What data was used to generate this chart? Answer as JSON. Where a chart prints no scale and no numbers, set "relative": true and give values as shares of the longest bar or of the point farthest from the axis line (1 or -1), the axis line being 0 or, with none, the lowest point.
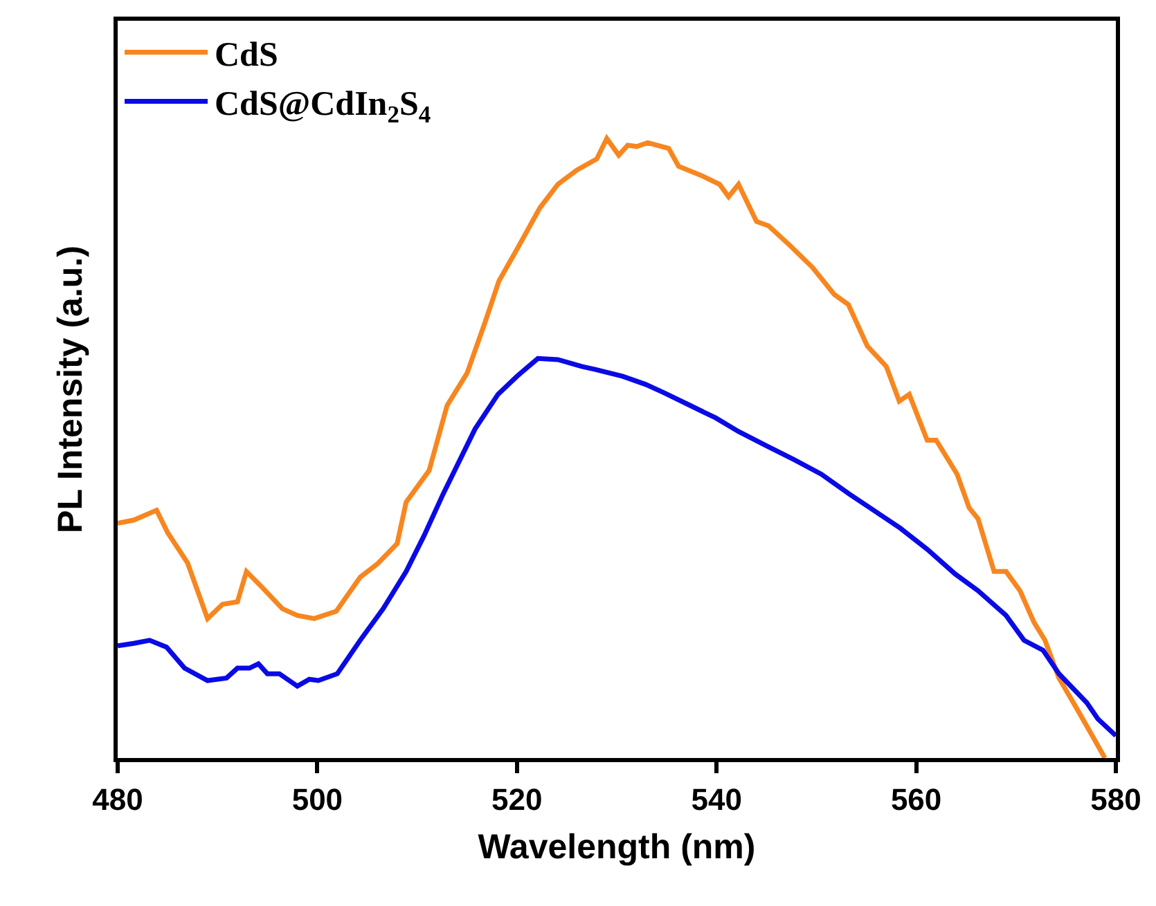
{
  "chart_data": {
    "type": "line",
    "relative": true,
    "xlabel": "Wavelength (nm)",
    "ylabel": "PL Intensity (a.u.)",
    "xlim": [
      480,
      580
    ],
    "xticks": [
      480,
      500,
      520,
      540,
      560,
      580
    ],
    "tick_labels": "x",
    "legend": "top left",
    "marker": "none",
    "line_style": "solid",
    "series": [
      {
        "name": "CdS",
        "color": "#f7861f",
        "x": [
          480,
          481.6,
          483.9,
          485,
          487,
          489,
          490.5,
          492,
          492.9,
          494.5,
          496.5,
          498,
          499.7,
          501.9,
          504.3,
          506,
          508,
          508.9,
          511.2,
          513,
          515,
          516.8,
          518.2,
          520,
          522.3,
          524.1,
          526,
          528,
          529,
          530.2,
          531.1,
          532,
          533.1,
          535.2,
          536.2,
          538.5,
          540.3,
          541.2,
          542.2,
          544,
          545.2,
          547.3,
          549.6,
          551.8,
          553.2,
          555.1,
          557,
          558.3,
          559.3,
          561.1,
          562,
          564.1,
          565.3,
          566.2,
          567.8,
          569,
          570.4,
          571.8,
          572.9,
          574.3,
          575.9,
          577.5,
          578.9
        ],
        "values": [
          0.379,
          0.384,
          0.4,
          0.364,
          0.315,
          0.225,
          0.248,
          0.252,
          0.301,
          0.275,
          0.241,
          0.23,
          0.225,
          0.237,
          0.292,
          0.313,
          0.346,
          0.413,
          0.464,
          0.569,
          0.621,
          0.703,
          0.77,
          0.821,
          0.888,
          0.926,
          0.949,
          0.967,
          1.0,
          0.973,
          0.989,
          0.987,
          0.993,
          0.984,
          0.955,
          0.94,
          0.926,
          0.906,
          0.926,
          0.866,
          0.859,
          0.828,
          0.792,
          0.748,
          0.732,
          0.665,
          0.632,
          0.576,
          0.587,
          0.513,
          0.513,
          0.458,
          0.404,
          0.386,
          0.301,
          0.301,
          0.27,
          0.219,
          0.19,
          0.129,
          0.085,
          0.04,
          0.0
        ]
      },
      {
        "name": "CdS@CdIn$_{2}$S$_{4}$",
        "color": "#0a0ae6",
        "x": [
          480,
          481.6,
          483.2,
          484.9,
          486.7,
          489,
          490.9,
          492,
          493.2,
          494.1,
          495,
          496.2,
          498,
          499.2,
          500.1,
          502,
          504.3,
          506.6,
          508.9,
          510.7,
          512.6,
          515.8,
          518.1,
          520,
          522.1,
          524.1,
          526.5,
          527.9,
          530.6,
          532.9,
          534.8,
          537.1,
          539.9,
          542.2,
          545,
          547.7,
          550.5,
          553.3,
          556,
          558.4,
          561.1,
          563.9,
          566.2,
          569,
          570.8,
          572.7,
          574.3,
          577.1,
          578.2,
          580
        ],
        "values": [
          0.181,
          0.185,
          0.19,
          0.179,
          0.145,
          0.125,
          0.129,
          0.145,
          0.145,
          0.152,
          0.136,
          0.136,
          0.116,
          0.127,
          0.125,
          0.136,
          0.19,
          0.241,
          0.301,
          0.359,
          0.426,
          0.531,
          0.587,
          0.616,
          0.645,
          0.643,
          0.632,
          0.627,
          0.616,
          0.603,
          0.589,
          0.571,
          0.549,
          0.527,
          0.504,
          0.482,
          0.458,
          0.426,
          0.397,
          0.371,
          0.337,
          0.297,
          0.27,
          0.23,
          0.19,
          0.174,
          0.136,
          0.089,
          0.063,
          0.036
        ]
      }
    ]
  }
}
